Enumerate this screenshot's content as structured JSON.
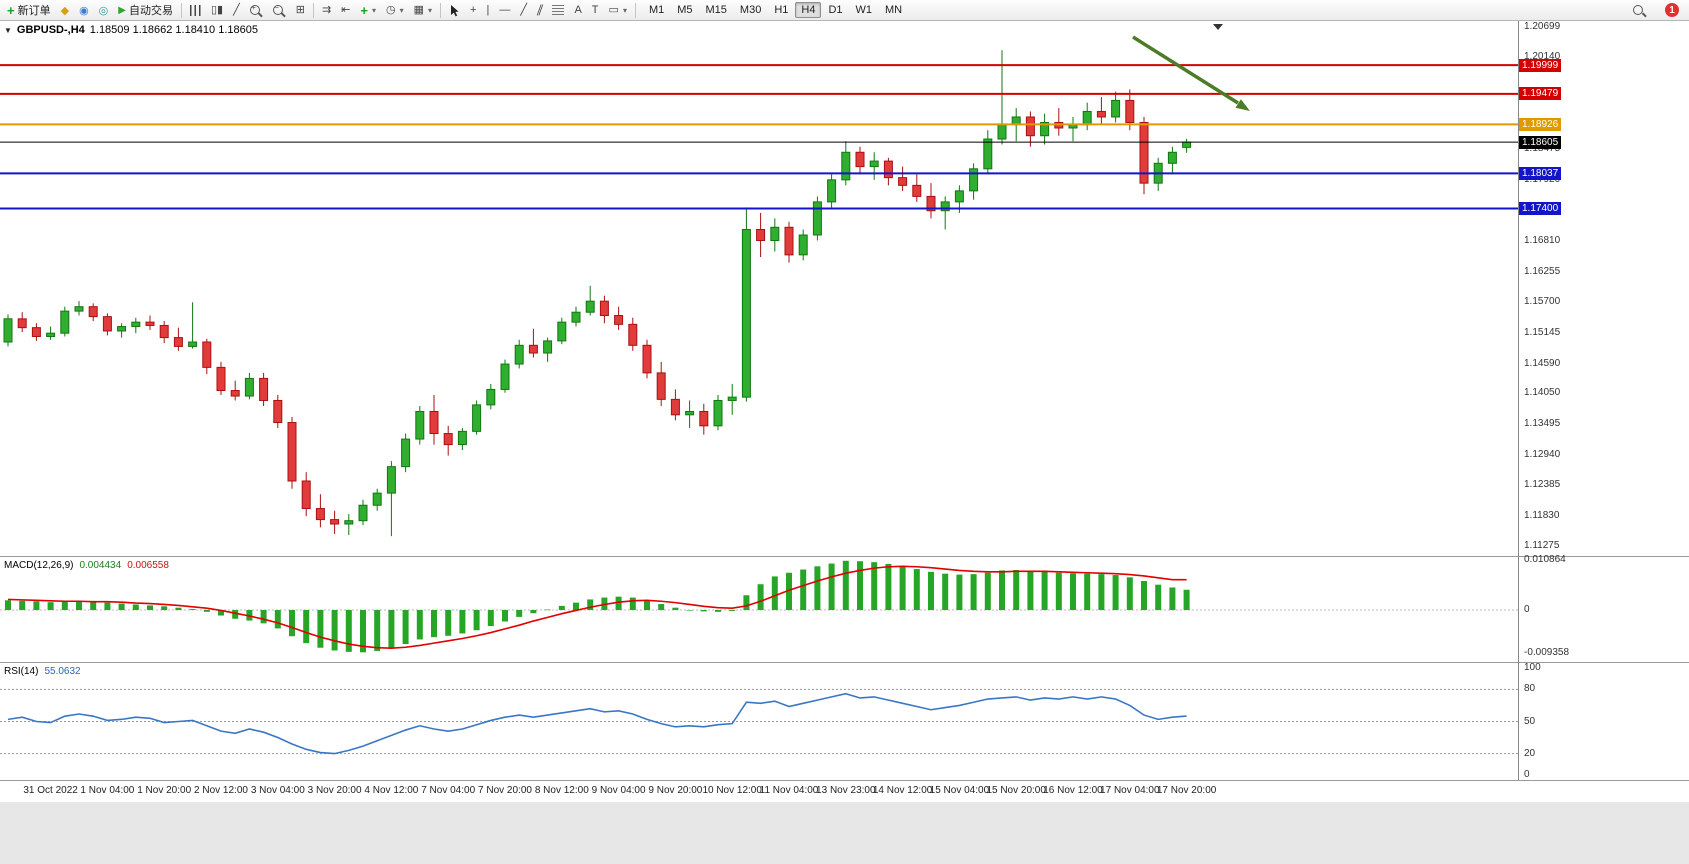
{
  "toolbar": {
    "new_order_label": "新订单",
    "auto_trading_label": "自动交易",
    "text_tool_label": "A",
    "label_tool_label": "T",
    "timeframes": [
      "M1",
      "M5",
      "M15",
      "M30",
      "H1",
      "H4",
      "D1",
      "W1",
      "MN"
    ],
    "active_timeframe": "H4",
    "notification_count": "1"
  },
  "chart": {
    "symbol_label": "GBPUSD-,H4",
    "ohlc_text": "1.18509 1.18662 1.18410 1.18605",
    "price_lines": [
      {
        "price": "1.19999",
        "value": 1.19999,
        "color": "#d40000",
        "width": 2
      },
      {
        "price": "1.19479",
        "value": 1.19479,
        "color": "#d40000",
        "width": 2
      },
      {
        "price": "1.18926",
        "value": 1.18926,
        "color": "#e09a00",
        "width": 2
      },
      {
        "price": "1.18605",
        "value": 1.18605,
        "color": "#000000",
        "width": 1
      },
      {
        "price": "1.18037",
        "value": 1.18037,
        "color": "#1414cc",
        "width": 2
      },
      {
        "price": "1.17400",
        "value": 1.174,
        "color": "#1414cc",
        "width": 2
      }
    ],
    "axis_ticks": [
      "1.20699",
      "1.20140",
      "1.18475",
      "1.17920",
      "1.16810",
      "1.16255",
      "1.15700",
      "1.15145",
      "1.14590",
      "1.14050",
      "1.13495",
      "1.12940",
      "1.12385",
      "1.11830",
      "1.11275"
    ],
    "time_labels": [
      "31 Oct 2022",
      "1 Nov 04:00",
      "1 Nov 20:00",
      "2 Nov 12:00",
      "3 Nov 04:00",
      "3 Nov 20:00",
      "4 Nov 12:00",
      "7 Nov 04:00",
      "7 Nov 20:00",
      "8 Nov 12:00",
      "9 Nov 04:00",
      "9 Nov 20:00",
      "10 Nov 12:00",
      "11 Nov 04:00",
      "13 Nov 23:00",
      "14 Nov 12:00",
      "15 Nov 04:00",
      "15 Nov 20:00",
      "16 Nov 12:00",
      "17 Nov 04:00",
      "17 Nov 20:00"
    ]
  },
  "macd": {
    "label": "MACD(12,26,9)",
    "value_main": "0.004434",
    "value_signal": "0.006558",
    "axis": [
      "0.010864",
      "0",
      "-0.009358"
    ]
  },
  "rsi": {
    "label": "RSI(14)",
    "value": "55.0632",
    "axis": [
      "100",
      "80",
      "50",
      "20",
      "0"
    ]
  },
  "colors": {
    "bull": "#2fae2f",
    "bull_border": "#117711",
    "bear": "#e23b3b",
    "bear_border": "#a81111",
    "macd_hist": "#27a527",
    "macd_signal": "#e00000",
    "rsi_line": "#3a76c6",
    "arrow": "#4c7d26"
  },
  "chart_data": {
    "type": "candlestick",
    "symbol": "GBPUSD-",
    "timeframe": "H4",
    "last_bar": {
      "open": 1.18509,
      "high": 1.18662,
      "low": 1.1841,
      "close": 1.18605
    },
    "price_axis": {
      "max": 1.208,
      "min": 1.111
    },
    "horizontal_levels": [
      1.19999,
      1.19479,
      1.18926,
      1.18605,
      1.18037,
      1.174
    ],
    "candles_ohlc": [
      [
        1.1498,
        1.1548,
        1.149,
        1.154
      ],
      [
        1.154,
        1.1552,
        1.1516,
        1.1524
      ],
      [
        1.1524,
        1.1532,
        1.15,
        1.1508
      ],
      [
        1.1508,
        1.1526,
        1.1502,
        1.1514
      ],
      [
        1.1514,
        1.1562,
        1.1508,
        1.1554
      ],
      [
        1.1554,
        1.1572,
        1.1546,
        1.1562
      ],
      [
        1.1562,
        1.1568,
        1.1536,
        1.1544
      ],
      [
        1.1544,
        1.155,
        1.151,
        1.1518
      ],
      [
        1.1518,
        1.1532,
        1.1506,
        1.1526
      ],
      [
        1.1526,
        1.1542,
        1.1514,
        1.1534
      ],
      [
        1.1534,
        1.1546,
        1.152,
        1.1528
      ],
      [
        1.1528,
        1.1536,
        1.1496,
        1.1506
      ],
      [
        1.1506,
        1.1524,
        1.1482,
        1.149
      ],
      [
        1.149,
        1.157,
        1.1486,
        1.1498
      ],
      [
        1.1498,
        1.1504,
        1.144,
        1.1452
      ],
      [
        1.1452,
        1.1462,
        1.1402,
        1.141
      ],
      [
        1.141,
        1.1428,
        1.1392,
        1.14
      ],
      [
        1.14,
        1.1442,
        1.1394,
        1.1432
      ],
      [
        1.1432,
        1.1442,
        1.1382,
        1.1392
      ],
      [
        1.1392,
        1.1402,
        1.1342,
        1.1352
      ],
      [
        1.1352,
        1.1362,
        1.1232,
        1.1246
      ],
      [
        1.1246,
        1.1262,
        1.1182,
        1.1196
      ],
      [
        1.1196,
        1.1222,
        1.1162,
        1.1176
      ],
      [
        1.1176,
        1.1192,
        1.115,
        1.1168
      ],
      [
        1.1168,
        1.1186,
        1.1148,
        1.1174
      ],
      [
        1.1174,
        1.1212,
        1.1166,
        1.1202
      ],
      [
        1.1202,
        1.1232,
        1.1192,
        1.1224
      ],
      [
        1.1224,
        1.1282,
        1.1146,
        1.1272
      ],
      [
        1.1272,
        1.1332,
        1.1262,
        1.1322
      ],
      [
        1.1322,
        1.1382,
        1.1312,
        1.1372
      ],
      [
        1.1372,
        1.1402,
        1.1312,
        1.1332
      ],
      [
        1.1332,
        1.1346,
        1.1292,
        1.1312
      ],
      [
        1.1312,
        1.1342,
        1.1302,
        1.1336
      ],
      [
        1.1336,
        1.1392,
        1.133,
        1.1384
      ],
      [
        1.1384,
        1.1422,
        1.1376,
        1.1412
      ],
      [
        1.1412,
        1.1466,
        1.1406,
        1.1458
      ],
      [
        1.1458,
        1.1502,
        1.145,
        1.1492
      ],
      [
        1.1492,
        1.1522,
        1.147,
        1.1478
      ],
      [
        1.1478,
        1.1506,
        1.1462,
        1.15
      ],
      [
        1.15,
        1.1542,
        1.1494,
        1.1534
      ],
      [
        1.1534,
        1.1562,
        1.1526,
        1.1552
      ],
      [
        1.1552,
        1.16,
        1.1546,
        1.1572
      ],
      [
        1.1572,
        1.1582,
        1.1532,
        1.1546
      ],
      [
        1.1546,
        1.1562,
        1.152,
        1.153
      ],
      [
        1.153,
        1.1542,
        1.1482,
        1.1492
      ],
      [
        1.1492,
        1.1502,
        1.1432,
        1.1442
      ],
      [
        1.1442,
        1.1462,
        1.1382,
        1.1394
      ],
      [
        1.1394,
        1.1412,
        1.1356,
        1.1366
      ],
      [
        1.1366,
        1.1392,
        1.1342,
        1.1372
      ],
      [
        1.1372,
        1.1386,
        1.133,
        1.1346
      ],
      [
        1.1346,
        1.1402,
        1.1338,
        1.1392
      ],
      [
        1.1392,
        1.1422,
        1.1366,
        1.1398
      ],
      [
        1.1398,
        1.1742,
        1.139,
        1.1702
      ],
      [
        1.1702,
        1.1732,
        1.1652,
        1.1682
      ],
      [
        1.1682,
        1.1722,
        1.1662,
        1.1706
      ],
      [
        1.1706,
        1.1716,
        1.1642,
        1.1656
      ],
      [
        1.1656,
        1.1702,
        1.1646,
        1.1692
      ],
      [
        1.1692,
        1.1762,
        1.1682,
        1.1752
      ],
      [
        1.1752,
        1.1802,
        1.1742,
        1.1792
      ],
      [
        1.1792,
        1.1862,
        1.1782,
        1.1842
      ],
      [
        1.1842,
        1.1852,
        1.1802,
        1.1816
      ],
      [
        1.1816,
        1.1842,
        1.1792,
        1.1826
      ],
      [
        1.1826,
        1.1832,
        1.1782,
        1.1796
      ],
      [
        1.1796,
        1.1816,
        1.1772,
        1.1782
      ],
      [
        1.1782,
        1.1802,
        1.1752,
        1.1762
      ],
      [
        1.1762,
        1.1786,
        1.1722,
        1.1736
      ],
      [
        1.1736,
        1.1762,
        1.1702,
        1.1752
      ],
      [
        1.1752,
        1.1782,
        1.1732,
        1.1772
      ],
      [
        1.1772,
        1.1822,
        1.1756,
        1.1812
      ],
      [
        1.1812,
        1.1882,
        1.1802,
        1.1866
      ],
      [
        1.1866,
        1.2027,
        1.1856,
        1.1892
      ],
      [
        1.1892,
        1.1922,
        1.1862,
        1.1906
      ],
      [
        1.1906,
        1.1916,
        1.1852,
        1.1872
      ],
      [
        1.1872,
        1.1912,
        1.1856,
        1.1896
      ],
      [
        1.1896,
        1.1922,
        1.1872,
        1.1886
      ],
      [
        1.1886,
        1.1906,
        1.1862,
        1.1892
      ],
      [
        1.1892,
        1.1932,
        1.1882,
        1.1916
      ],
      [
        1.1916,
        1.1942,
        1.1892,
        1.1906
      ],
      [
        1.1906,
        1.1952,
        1.1896,
        1.1936
      ],
      [
        1.1936,
        1.1956,
        1.1882,
        1.1896
      ],
      [
        1.1896,
        1.1906,
        1.1766,
        1.1786
      ],
      [
        1.1786,
        1.1832,
        1.1772,
        1.1822
      ],
      [
        1.1822,
        1.1852,
        1.1802,
        1.1842
      ],
      [
        1.18509,
        1.18662,
        1.1841,
        1.18605
      ]
    ],
    "indicators": [
      {
        "type": "MACD",
        "params": [
          12,
          26,
          9
        ],
        "current": [
          0.004434,
          0.006558
        ],
        "axis_range": [
          0.010864,
          -0.009358
        ],
        "histogram": [
          0.0021,
          0.002,
          0.0019,
          0.0017,
          0.0018,
          0.0019,
          0.0018,
          0.0016,
          0.0014,
          0.0012,
          0.001,
          0.0008,
          0.0005,
          0.0002,
          -0.0004,
          -0.0012,
          -0.0019,
          -0.0023,
          -0.0029,
          -0.004,
          -0.0057,
          -0.0072,
          -0.0082,
          -0.0088,
          -0.0091,
          -0.0092,
          -0.0089,
          -0.0083,
          -0.0074,
          -0.0064,
          -0.0059,
          -0.0056,
          -0.0051,
          -0.0044,
          -0.0035,
          -0.0025,
          -0.0015,
          -0.0007,
          0.0001,
          0.0009,
          0.0016,
          0.0023,
          0.0027,
          0.0029,
          0.0027,
          0.0021,
          0.0013,
          0.0005,
          0.0,
          -0.0003,
          -0.0004,
          -0.0002,
          0.0032,
          0.0056,
          0.0073,
          0.0081,
          0.0088,
          0.0095,
          0.0101,
          0.0107,
          0.0106,
          0.0104,
          0.01,
          0.0095,
          0.0089,
          0.0083,
          0.0079,
          0.0077,
          0.0078,
          0.0081,
          0.0086,
          0.0087,
          0.0085,
          0.0083,
          0.0081,
          0.008,
          0.0079,
          0.0078,
          0.0076,
          0.0071,
          0.0063,
          0.0055,
          0.0049,
          0.0044
        ],
        "signal": [
          0.0023,
          0.0022,
          0.0021,
          0.002,
          0.0019,
          0.0019,
          0.0018,
          0.0018,
          0.0017,
          0.0015,
          0.0014,
          0.0012,
          0.001,
          0.0007,
          0.0004,
          -0.0001,
          -0.0007,
          -0.0013,
          -0.002,
          -0.0028,
          -0.0038,
          -0.0049,
          -0.0059,
          -0.0067,
          -0.0074,
          -0.0079,
          -0.0082,
          -0.0083,
          -0.0081,
          -0.0077,
          -0.0072,
          -0.0067,
          -0.0062,
          -0.0056,
          -0.0049,
          -0.0041,
          -0.0033,
          -0.0024,
          -0.0016,
          -0.0008,
          -0.0001,
          0.0006,
          0.0012,
          0.0017,
          0.002,
          0.0021,
          0.0019,
          0.0016,
          0.0012,
          0.0008,
          0.0005,
          0.0004,
          0.0009,
          0.0019,
          0.0031,
          0.0043,
          0.0053,
          0.0063,
          0.0072,
          0.008,
          0.0086,
          0.0091,
          0.0094,
          0.0095,
          0.0094,
          0.0092,
          0.0089,
          0.0086,
          0.0084,
          0.0083,
          0.0083,
          0.0084,
          0.0084,
          0.0084,
          0.0083,
          0.0082,
          0.0081,
          0.008,
          0.0079,
          0.0077,
          0.0074,
          0.007,
          0.0066,
          0.0066
        ]
      },
      {
        "type": "RSI",
        "params": [
          14
        ],
        "current": 55.0632,
        "levels": [
          80,
          50,
          20
        ],
        "range": [
          0,
          100
        ],
        "values": [
          52,
          54,
          50,
          49,
          55,
          57,
          55,
          51,
          52,
          54,
          53,
          49,
          50,
          51,
          46,
          41,
          39,
          43,
          40,
          35,
          29,
          24,
          21,
          20,
          23,
          27,
          32,
          37,
          42,
          46,
          43,
          41,
          43,
          47,
          51,
          54,
          56,
          54,
          56,
          58,
          60,
          62,
          59,
          60,
          57,
          52,
          48,
          45,
          46,
          45,
          47,
          48,
          68,
          67,
          69,
          64,
          67,
          70,
          73,
          76,
          72,
          73,
          70,
          67,
          64,
          61,
          63,
          65,
          68,
          71,
          72,
          73,
          70,
          72,
          71,
          73,
          71,
          73,
          71,
          65,
          56,
          52,
          54,
          55.06
        ]
      }
    ],
    "x_labels": [
      "31 Oct 2022",
      "1 Nov 04:00",
      "1 Nov 20:00",
      "2 Nov 12:00",
      "3 Nov 04:00",
      "3 Nov 20:00",
      "4 Nov 12:00",
      "7 Nov 04:00",
      "7 Nov 20:00",
      "8 Nov 12:00",
      "9 Nov 04:00",
      "9 Nov 20:00",
      "10 Nov 12:00",
      "11 Nov 04:00",
      "13 Nov 23:00",
      "14 Nov 12:00",
      "15 Nov 04:00",
      "15 Nov 20:00",
      "16 Nov 12:00",
      "17 Nov 04:00",
      "17 Nov 20:00"
    ]
  }
}
